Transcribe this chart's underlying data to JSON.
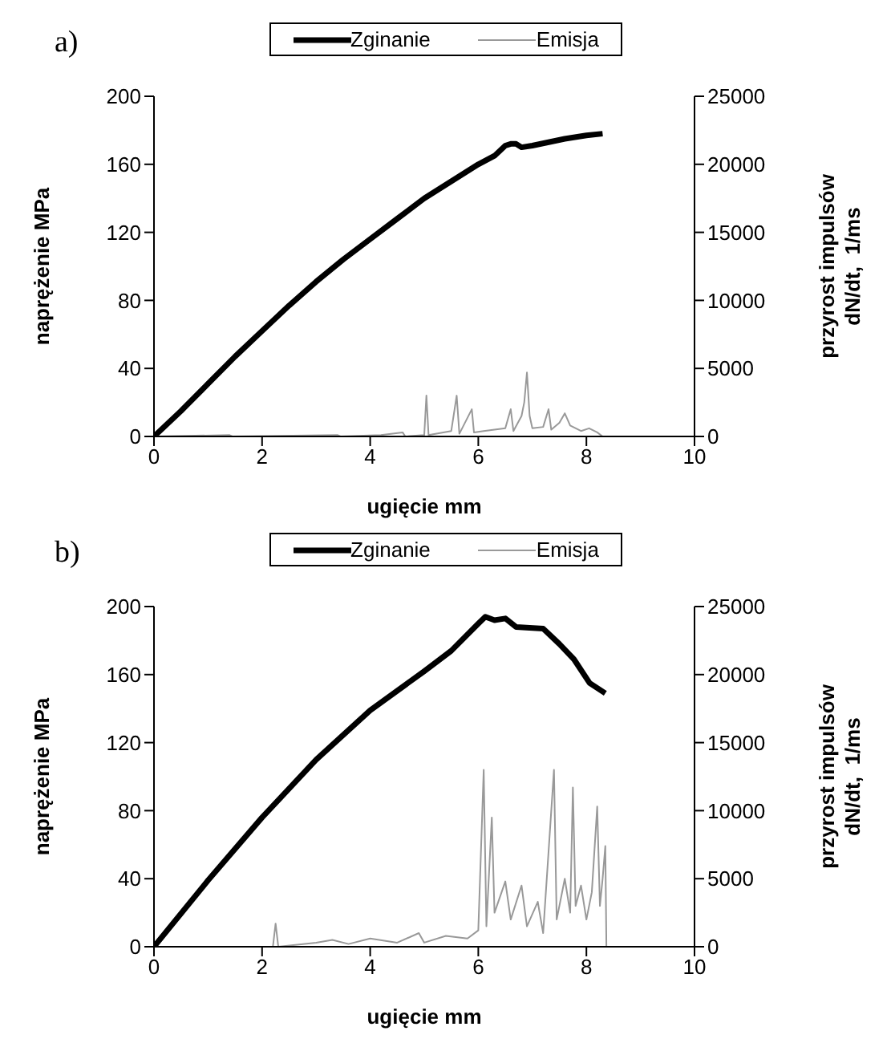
{
  "chart_data": [
    {
      "type": "line",
      "annotations": [
        "a)"
      ],
      "xlabel": "ugięcie   mm",
      "ylabel": "naprężenie  MPa",
      "y2label": "przyrost impulsów\ndN/dt,  1/ms",
      "xlim": [
        0,
        10
      ],
      "xticks": [
        0,
        2,
        4,
        6,
        8,
        10
      ],
      "ylim": [
        0,
        200
      ],
      "yticks": [
        0,
        40,
        80,
        120,
        160,
        200
      ],
      "y2lim": [
        0,
        25000
      ],
      "y2ticks": [
        0,
        5000,
        10000,
        15000,
        20000,
        25000
      ],
      "legend": "top",
      "marker": "none",
      "line_style": "solid",
      "series": [
        {
          "name": "Zginanie",
          "color": "#000000",
          "x": [
            0,
            0.5,
            1,
            1.5,
            2,
            2.5,
            3,
            3.5,
            4,
            4.5,
            5,
            5.5,
            6,
            6.3,
            6.5,
            6.6,
            6.7,
            6.8,
            7,
            7.3,
            7.6,
            8,
            8.3
          ],
          "values": [
            0,
            15,
            31,
            47,
            62,
            77,
            91,
            104,
            116,
            128,
            140,
            150,
            160,
            165,
            171,
            172,
            172,
            170,
            171,
            173,
            175,
            177,
            178
          ]
        },
        {
          "name": "Emisja",
          "color": "#999999",
          "axis": "y2",
          "x": [
            0,
            1.4,
            1.45,
            3.4,
            3.45,
            4.2,
            4.6,
            4.65,
            5.0,
            5.04,
            5.08,
            5.5,
            5.6,
            5.65,
            5.88,
            5.92,
            6.1,
            6.3,
            6.5,
            6.6,
            6.65,
            6.8,
            6.85,
            6.9,
            6.95,
            7.0,
            7.2,
            7.3,
            7.35,
            7.5,
            7.6,
            7.7,
            7.9,
            8.05,
            8.2,
            8.3,
            10
          ],
          "values": [
            0,
            100,
            0,
            100,
            0,
            100,
            300,
            0,
            100,
            3000,
            100,
            400,
            3000,
            200,
            2000,
            300,
            400,
            500,
            600,
            2000,
            400,
            1500,
            2500,
            4700,
            1500,
            600,
            700,
            2000,
            500,
            1000,
            1700,
            800,
            400,
            600,
            300,
            0,
            0
          ]
        }
      ]
    },
    {
      "type": "line",
      "annotations": [
        "b)"
      ],
      "xlabel": "ugięcie   mm",
      "ylabel": "naprężenie  MPa",
      "y2label": "przyrost impulsów\ndN/dt,  1/ms",
      "xlim": [
        0,
        10
      ],
      "xticks": [
        0,
        2,
        4,
        6,
        8,
        10
      ],
      "ylim": [
        0,
        200
      ],
      "yticks": [
        0,
        40,
        80,
        120,
        160,
        200
      ],
      "y2lim": [
        0,
        25000
      ],
      "y2ticks": [
        0,
        5000,
        10000,
        15000,
        20000,
        25000
      ],
      "legend": "top",
      "marker": "none",
      "line_style": "solid",
      "series": [
        {
          "name": "Zginanie",
          "color": "#000000",
          "x": [
            0,
            1,
            2,
            3,
            4,
            5,
            5.5,
            6,
            6.13,
            6.3,
            6.5,
            6.7,
            7.2,
            7.5,
            7.77,
            8.06,
            8.35
          ],
          "values": [
            0,
            39,
            76,
            110,
            139,
            162,
            174,
            190,
            194,
            192,
            193,
            188,
            187,
            178,
            169,
            155,
            149
          ]
        },
        {
          "name": "Emisja",
          "color": "#999999",
          "axis": "y2",
          "x": [
            0,
            2.2,
            2.25,
            2.3,
            3.0,
            3.3,
            3.6,
            4.0,
            4.5,
            4.9,
            5.0,
            5.4,
            5.8,
            6.0,
            6.1,
            6.15,
            6.25,
            6.3,
            6.5,
            6.6,
            6.8,
            6.9,
            7.1,
            7.2,
            7.4,
            7.45,
            7.6,
            7.7,
            7.75,
            7.8,
            7.9,
            8.0,
            8.1,
            8.2,
            8.25,
            8.3,
            8.35,
            8.37
          ],
          "values": [
            0,
            0,
            1700,
            0,
            300,
            500,
            200,
            600,
            300,
            1000,
            300,
            800,
            600,
            1200,
            13000,
            1500,
            9500,
            2500,
            4800,
            2000,
            4500,
            1500,
            3300,
            1000,
            13000,
            2000,
            5000,
            2500,
            11700,
            3000,
            4500,
            2000,
            4000,
            10300,
            3000,
            5000,
            7400,
            0
          ]
        }
      ]
    }
  ]
}
